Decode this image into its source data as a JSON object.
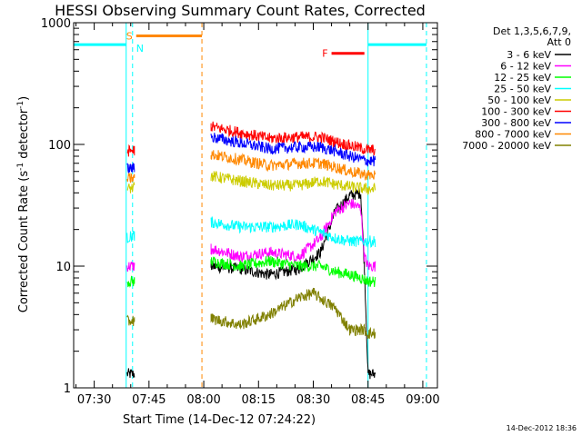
{
  "chart_data": {
    "type": "line",
    "title": "HESSI Observing Summary Count Rates, Corrected",
    "xlabel": "Start Time (14-Dec-12 07:24:22)",
    "ylabel_main": "Corrected Count Rate (s",
    "ylabel_sup1": "-1",
    "ylabel_mid": " detector",
    "ylabel_sup2": "-1",
    "ylabel_end": ")",
    "footer": "14-Dec-2012 18:36",
    "x_range": [
      "07:24:22",
      "09:04:00"
    ],
    "x_ticks": [
      "07:30",
      "07:45",
      "08:00",
      "08:15",
      "08:30",
      "08:45",
      "09:00"
    ],
    "y_scale": "log",
    "y_range": [
      1,
      1000
    ],
    "y_ticks": [
      "1",
      "10",
      "100",
      "1000"
    ],
    "legend_header": [
      "Det 1,3,5,6,7,9,",
      "Att 0"
    ],
    "legend_placement": "right",
    "series": [
      {
        "name": "3 - 6 keV",
        "color": "#000000",
        "points": [
          [
            "07:39",
            1.3
          ],
          [
            "07:41",
            1.3
          ],
          [
            "08:02",
            10
          ],
          [
            "08:10",
            9.5
          ],
          [
            "08:18",
            8.5
          ],
          [
            "08:26",
            9.5
          ],
          [
            "08:32",
            13
          ],
          [
            "08:36",
            28
          ],
          [
            "08:40",
            38
          ],
          [
            "08:43",
            40
          ],
          [
            "08:44",
            10
          ],
          [
            "08:45",
            1.3
          ],
          [
            "08:47",
            1.3
          ]
        ]
      },
      {
        "name": "6 - 12 keV",
        "color": "#ff00ff",
        "points": [
          [
            "07:39",
            10
          ],
          [
            "07:41",
            10
          ],
          [
            "08:02",
            14
          ],
          [
            "08:10",
            12
          ],
          [
            "08:18",
            13
          ],
          [
            "08:26",
            12
          ],
          [
            "08:32",
            17
          ],
          [
            "08:36",
            28
          ],
          [
            "08:40",
            33
          ],
          [
            "08:43",
            30
          ],
          [
            "08:44",
            12
          ],
          [
            "08:45",
            10
          ],
          [
            "08:47",
            10
          ]
        ]
      },
      {
        "name": "12 - 25 keV",
        "color": "#00ff00",
        "points": [
          [
            "07:39",
            7.5
          ],
          [
            "07:41",
            7.5
          ],
          [
            "08:02",
            11
          ],
          [
            "08:10",
            10
          ],
          [
            "08:18",
            11
          ],
          [
            "08:26",
            10
          ],
          [
            "08:32",
            10
          ],
          [
            "08:36",
            9
          ],
          [
            "08:40",
            8.5
          ],
          [
            "08:43",
            8
          ],
          [
            "08:45",
            7.5
          ],
          [
            "08:47",
            7.5
          ]
        ]
      },
      {
        "name": "25 - 50 keV",
        "color": "#00ffff",
        "points": [
          [
            "07:39",
            17
          ],
          [
            "07:41",
            18
          ],
          [
            "08:02",
            23
          ],
          [
            "08:10",
            21
          ],
          [
            "08:18",
            21
          ],
          [
            "08:26",
            22
          ],
          [
            "08:32",
            19
          ],
          [
            "08:36",
            17
          ],
          [
            "08:40",
            16
          ],
          [
            "08:45",
            16
          ],
          [
            "08:47",
            16
          ]
        ]
      },
      {
        "name": "50 - 100 keV",
        "color": "#cccc00",
        "points": [
          [
            "07:39",
            43
          ],
          [
            "07:41",
            44
          ],
          [
            "08:02",
            55
          ],
          [
            "08:10",
            50
          ],
          [
            "08:18",
            46
          ],
          [
            "08:26",
            46
          ],
          [
            "08:32",
            50
          ],
          [
            "08:36",
            47
          ],
          [
            "08:40",
            45
          ],
          [
            "08:45",
            43
          ],
          [
            "08:47",
            43
          ]
        ]
      },
      {
        "name": "100 - 300 keV",
        "color": "#ff0000",
        "points": [
          [
            "07:39",
            88
          ],
          [
            "07:41",
            90
          ],
          [
            "08:02",
            140
          ],
          [
            "08:10",
            125
          ],
          [
            "08:18",
            112
          ],
          [
            "08:26",
            115
          ],
          [
            "08:32",
            115
          ],
          [
            "08:36",
            105
          ],
          [
            "08:40",
            98
          ],
          [
            "08:45",
            90
          ],
          [
            "08:47",
            90
          ]
        ]
      },
      {
        "name": "300 - 800 keV",
        "color": "#0000ff",
        "points": [
          [
            "07:39",
            63
          ],
          [
            "07:41",
            64
          ],
          [
            "08:02",
            115
          ],
          [
            "08:10",
            103
          ],
          [
            "08:18",
            92
          ],
          [
            "08:26",
            95
          ],
          [
            "08:32",
            95
          ],
          [
            "08:36",
            88
          ],
          [
            "08:40",
            80
          ],
          [
            "08:45",
            73
          ],
          [
            "08:47",
            73
          ]
        ]
      },
      {
        "name": "800 - 7000 keV",
        "color": "#ff8800",
        "points": [
          [
            "07:39",
            52
          ],
          [
            "07:41",
            53
          ],
          [
            "08:02",
            83
          ],
          [
            "08:10",
            75
          ],
          [
            "08:18",
            67
          ],
          [
            "08:26",
            70
          ],
          [
            "08:32",
            70
          ],
          [
            "08:36",
            65
          ],
          [
            "08:40",
            60
          ],
          [
            "08:45",
            56
          ],
          [
            "08:47",
            56
          ]
        ]
      },
      {
        "name": "7000 - 20000 keV",
        "color": "#808000",
        "points": [
          [
            "07:39",
            3.5
          ],
          [
            "07:41",
            3.6
          ],
          [
            "08:02",
            3.7
          ],
          [
            "08:10",
            3.3
          ],
          [
            "08:18",
            4
          ],
          [
            "08:26",
            5.5
          ],
          [
            "08:30",
            6
          ],
          [
            "08:36",
            4.5
          ],
          [
            "08:40",
            3
          ],
          [
            "08:44",
            3
          ],
          [
            "08:45",
            2.8
          ],
          [
            "08:47",
            2.8
          ]
        ]
      }
    ],
    "segments": [
      {
        "label": "",
        "color": "#00ffff",
        "start": "07:24:22",
        "end": "07:38:45",
        "y": 660,
        "style": "solid",
        "label_side": "none"
      },
      {
        "label": "N",
        "color": "#00ffff",
        "start": "07:40:30",
        "end": "07:40:30",
        "y": 660,
        "style": "dash",
        "label_side": "right"
      },
      {
        "label": "S",
        "color": "#ff8800",
        "start": "07:41:30",
        "end": "07:59:30",
        "y": 780,
        "style": "solid",
        "label_side": "left"
      },
      {
        "label": "F",
        "color": "#ff0000",
        "start": "08:35:00",
        "end": "08:44:00",
        "y": 560,
        "style": "solid",
        "label_side": "left"
      },
      {
        "label": "",
        "color": "#00ffff",
        "start": "08:45:00",
        "end": "09:01:00",
        "y": 660,
        "style": "solid",
        "label_side": "none"
      }
    ],
    "vertical_markers": [
      {
        "time": "07:24:22",
        "color": "#00ffff",
        "style": "solid"
      },
      {
        "time": "07:38:45",
        "color": "#00ffff",
        "style": "solid"
      },
      {
        "time": "07:40:30",
        "color": "#00ffff",
        "style": "dash"
      },
      {
        "time": "07:59:30",
        "color": "#ff8800",
        "style": "dash"
      },
      {
        "time": "08:45:00",
        "color": "#00ffff",
        "style": "solid"
      },
      {
        "time": "09:01:00",
        "color": "#00ffff",
        "style": "dash"
      }
    ]
  }
}
